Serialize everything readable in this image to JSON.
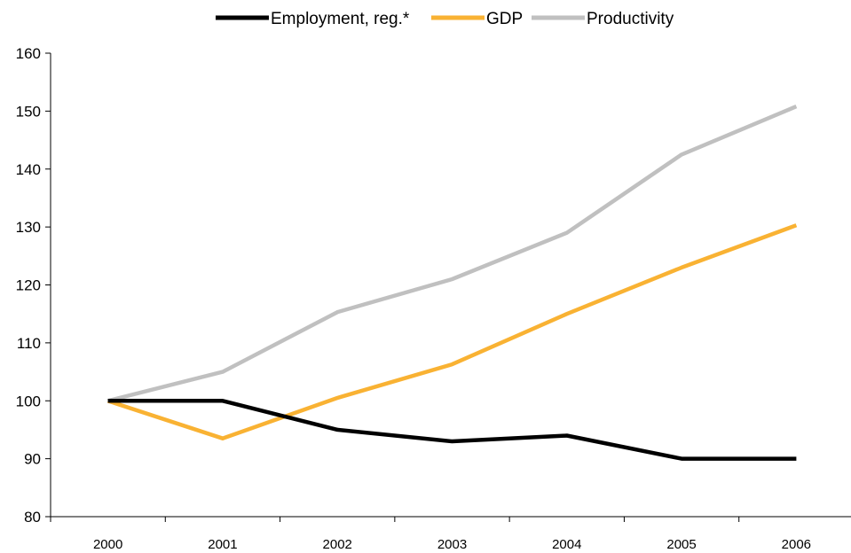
{
  "chart_data": {
    "type": "line",
    "categories": [
      "2000",
      "2001",
      "2002",
      "2003",
      "2004",
      "2005",
      "2006"
    ],
    "series": [
      {
        "name": "Employment, reg.*",
        "color": "#000000",
        "values": [
          100,
          100,
          95,
          93,
          94,
          90,
          90
        ]
      },
      {
        "name": "GDP",
        "color": "#F9B233",
        "values": [
          100,
          93.5,
          100.5,
          106.3,
          115,
          123,
          130.3
        ]
      },
      {
        "name": "Productivity",
        "color": "#C0C0C0",
        "values": [
          100,
          105,
          115.3,
          121,
          129,
          142.5,
          150.8
        ]
      }
    ],
    "ylim": [
      80,
      160
    ],
    "yticks": [
      80,
      90,
      100,
      110,
      120,
      130,
      140,
      150,
      160
    ],
    "legend_position": "top-center",
    "grid": false
  }
}
